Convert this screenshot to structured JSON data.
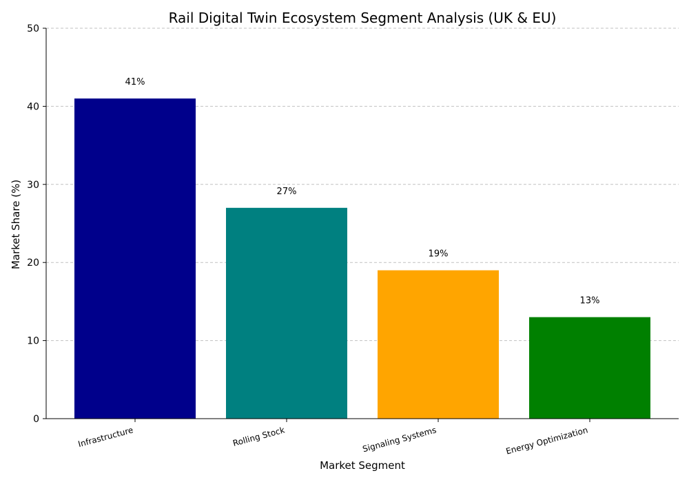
{
  "chart_data": {
    "type": "bar",
    "title": "Rail Digital Twin Ecosystem Segment Analysis (UK & EU)",
    "xlabel": "Market Segment",
    "ylabel": "Market Share (%)",
    "ylim": [
      0,
      50
    ],
    "yticks": [
      0,
      10,
      20,
      30,
      40,
      50
    ],
    "grid": true,
    "categories": [
      "Infrastructure",
      "Rolling Stock",
      "Signaling Systems",
      "Energy Optimization"
    ],
    "values": [
      41,
      27,
      19,
      13
    ],
    "data_labels": [
      "41%",
      "27%",
      "19%",
      "13%"
    ],
    "colors": [
      "#00008b",
      "#008080",
      "#ffa500",
      "#008000"
    ]
  }
}
